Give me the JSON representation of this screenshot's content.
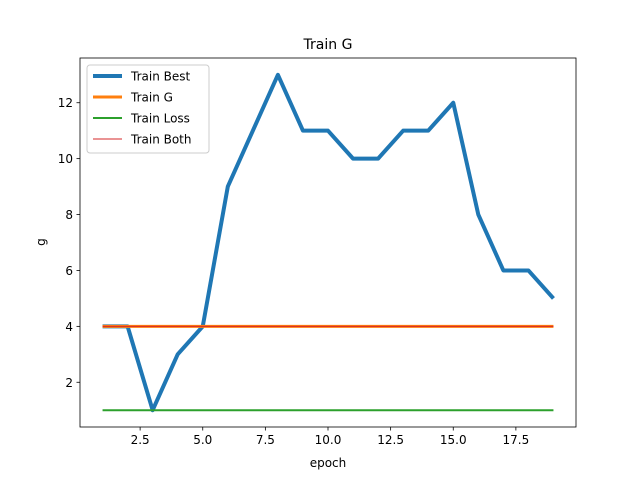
{
  "chart_data": {
    "type": "line",
    "title": "Train G",
    "xlabel": "epoch",
    "ylabel": "g",
    "xlim": [
      0.1,
      19.9
    ],
    "ylim": [
      0.4,
      13.6
    ],
    "xticks": [
      2.5,
      5.0,
      7.5,
      10.0,
      12.5,
      15.0,
      17.5
    ],
    "xtick_labels": [
      "2.5",
      "5.0",
      "7.5",
      "10.0",
      "12.5",
      "15.0",
      "17.5"
    ],
    "yticks": [
      2,
      4,
      6,
      8,
      10,
      12
    ],
    "ytick_labels": [
      "2",
      "4",
      "6",
      "8",
      "10",
      "12"
    ],
    "grid": false,
    "legend_position": "top-left",
    "x": [
      1,
      2,
      3,
      4,
      5,
      6,
      7,
      8,
      9,
      10,
      11,
      12,
      13,
      14,
      15,
      16,
      17,
      18,
      19
    ],
    "series": [
      {
        "name": "Train Best",
        "color": "#1f77b4",
        "values": [
          4,
          4,
          1,
          3,
          4,
          9,
          11,
          13,
          11,
          11,
          10,
          10,
          11,
          11,
          12,
          8,
          6,
          6,
          5
        ]
      },
      {
        "name": "Train G",
        "color": "#ff7f0e",
        "values": [
          4,
          4,
          4,
          4,
          4,
          4,
          4,
          4,
          4,
          4,
          4,
          4,
          4,
          4,
          4,
          4,
          4,
          4,
          4
        ]
      },
      {
        "name": "Train Loss",
        "color": "#2ca02c",
        "values": [
          1,
          1,
          1,
          1,
          1,
          1,
          1,
          1,
          1,
          1,
          1,
          1,
          1,
          1,
          1,
          1,
          1,
          1,
          1
        ]
      },
      {
        "name": "Train Both",
        "color": "#d62728",
        "values": [
          4,
          4,
          4,
          4,
          4,
          4,
          4,
          4,
          4,
          4,
          4,
          4,
          4,
          4,
          4,
          4,
          4,
          4,
          4
        ]
      }
    ]
  }
}
